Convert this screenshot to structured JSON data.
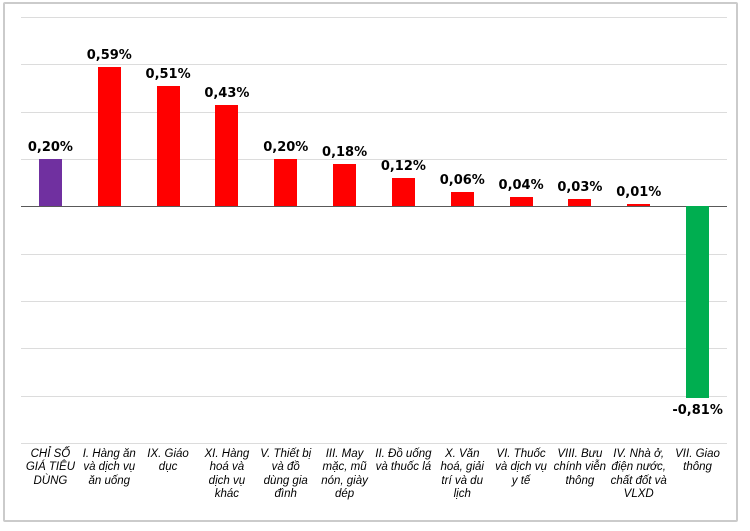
{
  "chart_data": {
    "type": "bar",
    "title": "",
    "xlabel": "",
    "ylabel": "",
    "categories": [
      "CHỈ SỐ GIÁ TIÊU DÙNG",
      "I. Hàng ăn và dịch vụ ăn uống",
      "IX. Giáo dục",
      "XI. Hàng hoá và dịch vụ khác",
      "V. Thiết bị và đồ dùng gia đình",
      "III. May mặc, mũ nón, giày dép",
      "II. Đồ uống và thuốc lá",
      "X. Văn hoá, giải trí và du lịch",
      "VI. Thuốc và dịch vụ y tế",
      "VIII. Bưu chính viễn thông",
      "IV. Nhà ở, điện nước, chất đốt và VLXD",
      "VII. Giao thông"
    ],
    "values": [
      0.2,
      0.59,
      0.51,
      0.43,
      0.2,
      0.18,
      0.12,
      0.06,
      0.04,
      0.03,
      0.01,
      -0.81
    ],
    "value_labels": [
      "0,20%",
      "0,59%",
      "0,51%",
      "0,43%",
      "0,20%",
      "0,18%",
      "0,12%",
      "0,06%",
      "0,04%",
      "0,03%",
      "0,01%",
      "-0,81%"
    ],
    "bar_colors": [
      "#7030A0",
      "#FF0000",
      "#FF0000",
      "#FF0000",
      "#FF0000",
      "#FF0000",
      "#FF0000",
      "#FF0000",
      "#FF0000",
      "#FF0000",
      "#FF0000",
      "#00AE50"
    ],
    "ylim": [
      -1.0,
      0.8
    ],
    "grid_step": 0.2,
    "grid": true,
    "legend": false
  },
  "colors": {
    "highlight_purple": "#7030A0",
    "positive_red": "#FF0000",
    "negative_green": "#00AE50",
    "gridline": "#DCDCDC",
    "zero_axis": "#595959",
    "frame_border": "#CBCBCB",
    "label_text": "#000000"
  }
}
